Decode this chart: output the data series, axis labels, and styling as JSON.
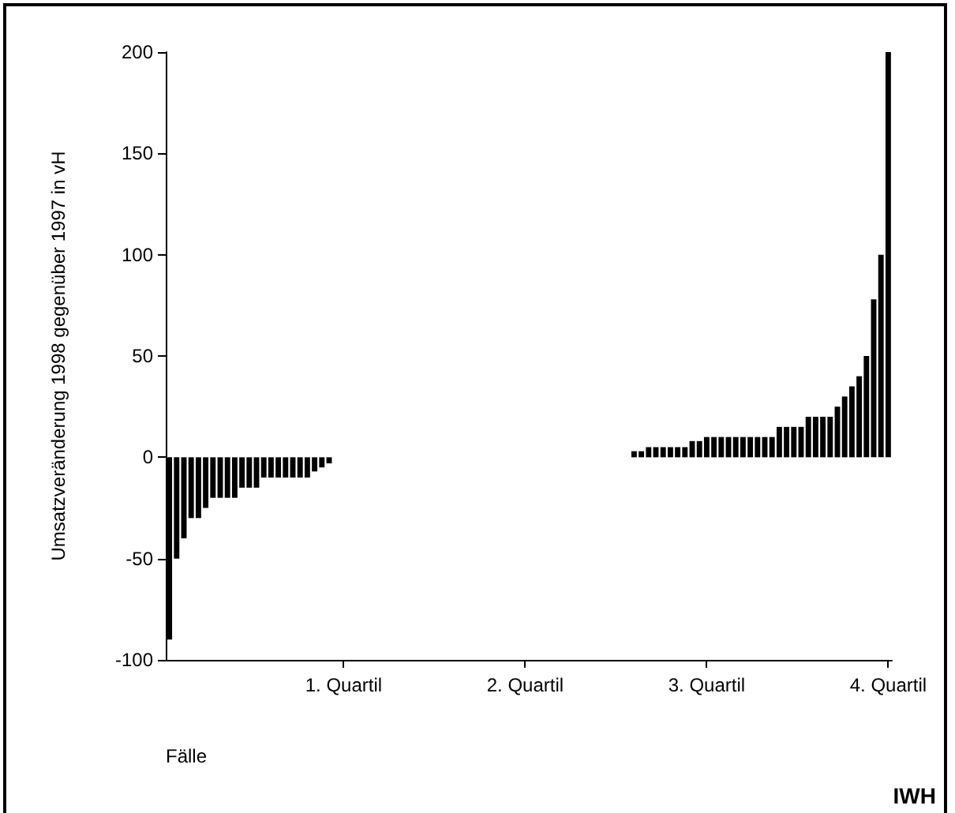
{
  "chart_data": {
    "type": "bar",
    "xlabel": "Fälle",
    "ylabel": "Umsatzveränderung 1998 gegenüber 1997 in vH",
    "categories": [
      null,
      null,
      null,
      null,
      null,
      null,
      null,
      null,
      null,
      null,
      null,
      null,
      null,
      null,
      null,
      null,
      null,
      null,
      null,
      null,
      null,
      null,
      null,
      null,
      "1. Quartil",
      null,
      null,
      null,
      null,
      null,
      null,
      null,
      null,
      null,
      null,
      null,
      null,
      null,
      null,
      null,
      null,
      null,
      null,
      null,
      null,
      null,
      null,
      null,
      null,
      "2. Quartil",
      null,
      null,
      null,
      null,
      null,
      null,
      null,
      null,
      null,
      null,
      null,
      null,
      null,
      null,
      null,
      null,
      null,
      null,
      null,
      null,
      null,
      null,
      null,
      null,
      "3. Quartil",
      null,
      null,
      null,
      null,
      null,
      null,
      null,
      null,
      null,
      null,
      null,
      null,
      null,
      null,
      null,
      null,
      null,
      null,
      null,
      null,
      null,
      null,
      null,
      null,
      "4. Quartil"
    ],
    "values": [
      -90,
      -50,
      -40,
      -30,
      -30,
      -25,
      -20,
      -20,
      -20,
      -20,
      -15,
      -15,
      -15,
      -10,
      -10,
      -10,
      -10,
      -10,
      -10,
      -10,
      -7,
      -5,
      -3,
      0,
      0,
      0,
      0,
      0,
      0,
      0,
      0,
      0,
      0,
      0,
      0,
      0,
      0,
      0,
      0,
      0,
      0,
      0,
      0,
      0,
      0,
      0,
      0,
      0,
      0,
      0,
      0,
      0,
      0,
      0,
      0,
      0,
      0,
      0,
      0,
      0,
      0,
      0,
      0,
      0,
      3,
      3,
      5,
      5,
      5,
      5,
      5,
      5,
      8,
      8,
      10,
      10,
      10,
      10,
      10,
      10,
      10,
      10,
      10,
      10,
      15,
      15,
      15,
      15,
      20,
      20,
      20,
      20,
      25,
      30,
      35,
      40,
      50,
      78,
      100,
      200
    ],
    "color": "#000000",
    "ylim": [
      -100,
      200
    ],
    "yticks": [
      -100,
      -50,
      0,
      50,
      100,
      150,
      200
    ],
    "grid": false,
    "annotations": [
      "IWH"
    ]
  }
}
